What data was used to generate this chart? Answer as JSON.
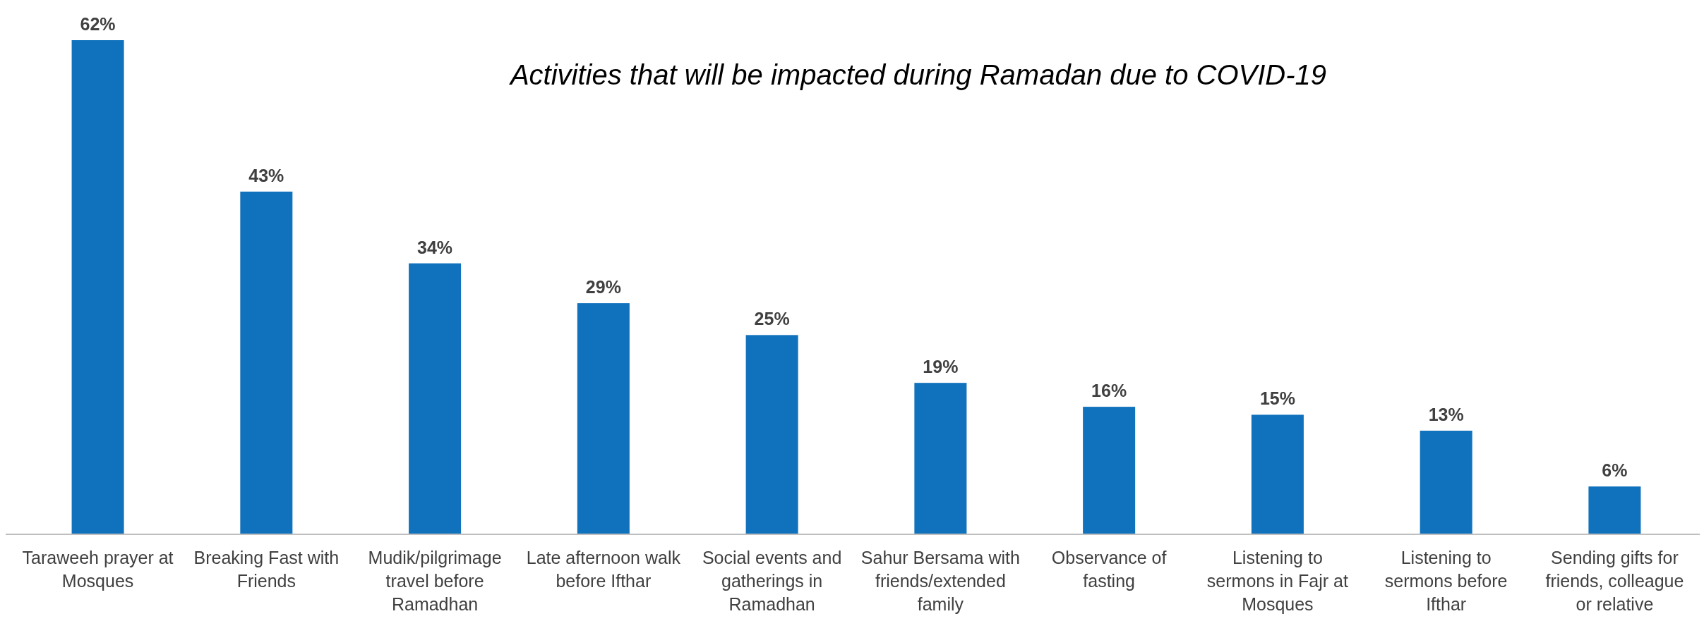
{
  "chart_data": {
    "type": "bar",
    "title": "Activities that will be impacted during Ramadan due to COVID-19",
    "categories": [
      "Taraweeh prayer at Mosques",
      "Breaking Fast with Friends",
      "Mudik/pilgrimage travel before Ramadhan",
      "Late afternoon walk before Ifthar",
      "Social events and gatherings in Ramadhan",
      "Sahur Bersama with friends/extended family",
      "Observance of fasting",
      "Listening to sermons in Fajr at Mosques",
      "Listening to sermons before Ifthar",
      "Sending gifts for friends, colleague or relative"
    ],
    "values": [
      62,
      43,
      34,
      29,
      25,
      19,
      16,
      15,
      13,
      6
    ],
    "value_labels": [
      "62%",
      "43%",
      "34%",
      "29%",
      "25%",
      "19%",
      "16%",
      "15%",
      "13%",
      "6%"
    ],
    "color": "#1072bd"
  }
}
